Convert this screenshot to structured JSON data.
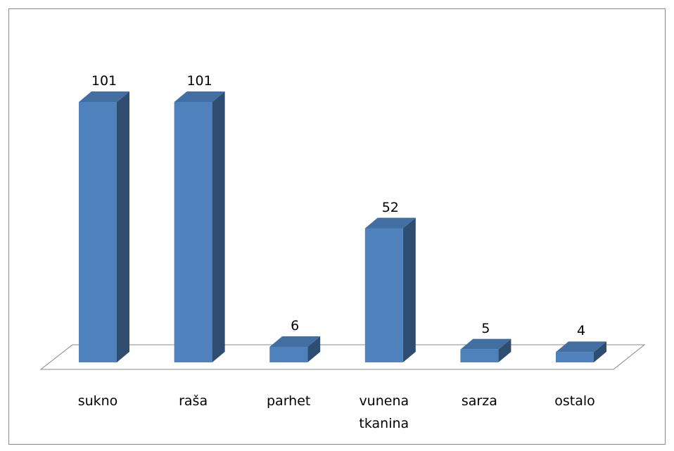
{
  "chart_data": {
    "type": "bar3d",
    "categories": [
      "sukno",
      "raša",
      "parhet",
      "vunena tkanina",
      "sarza",
      "ostalo"
    ],
    "values": [
      101,
      101,
      6,
      52,
      5,
      4
    ],
    "color": "#4f81bd"
  }
}
